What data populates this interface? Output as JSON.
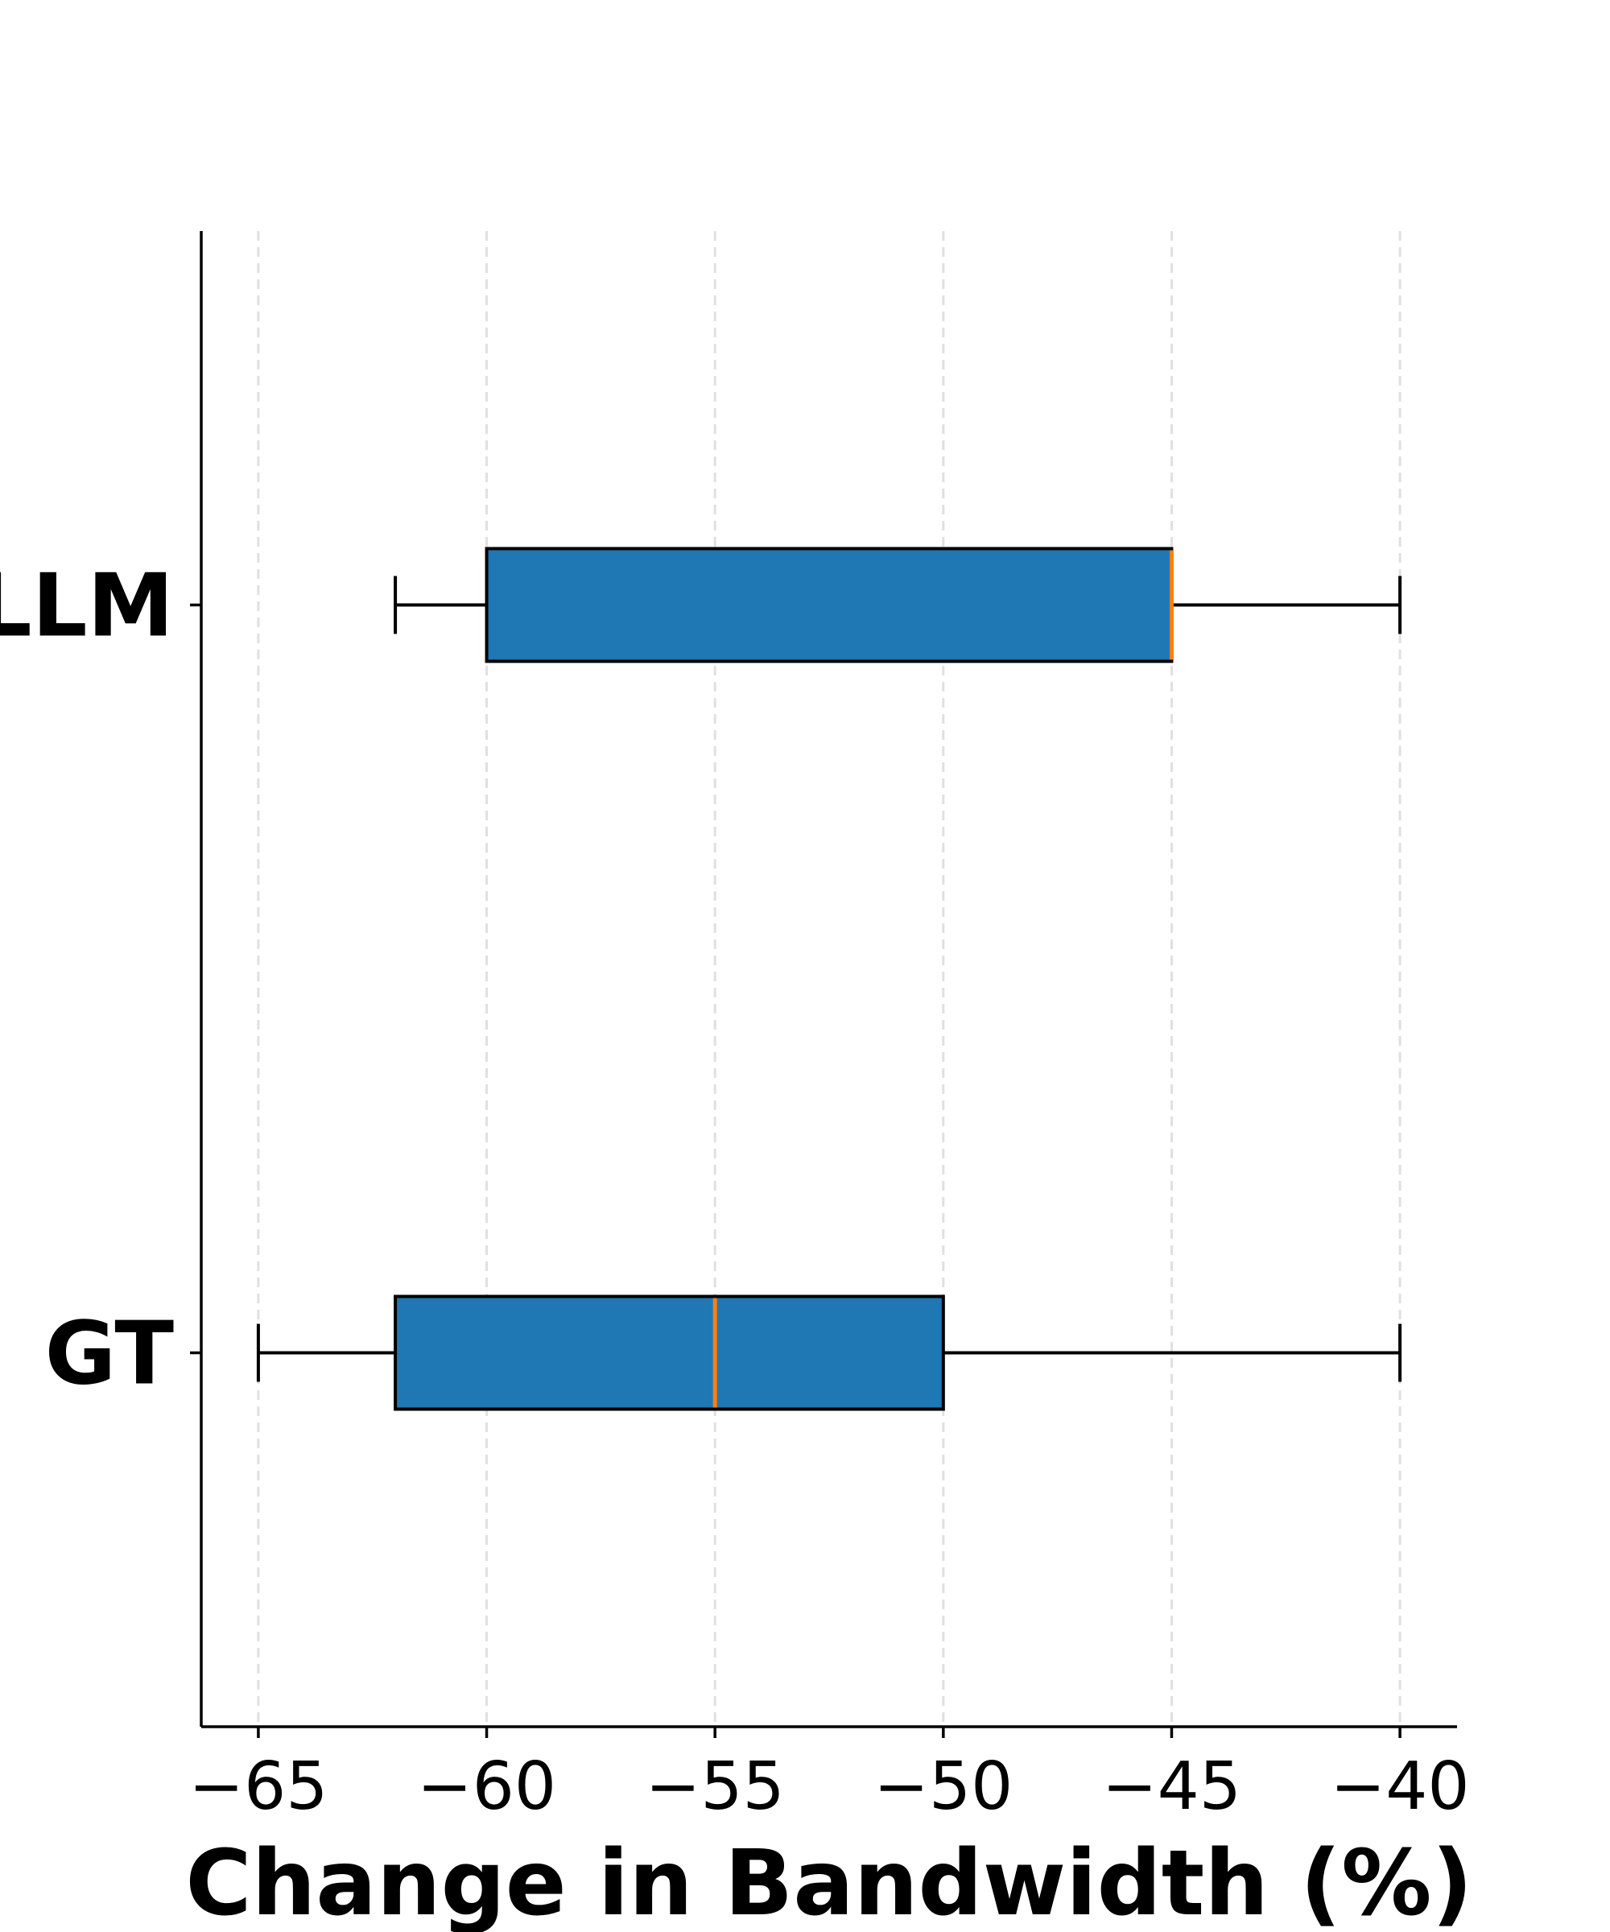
{
  "chart_data": {
    "type": "box",
    "orientation": "horizontal",
    "title": "",
    "xlabel": "Change in Bandwidth (%)",
    "ylabel": "",
    "xlim": [
      -66.25,
      -38.75
    ],
    "xticks": [
      -65,
      -60,
      -55,
      -50,
      -45,
      -40
    ],
    "xtick_labels": [
      "−65",
      "−60",
      "−55",
      "−50",
      "−45",
      "−40"
    ],
    "grid": {
      "axis": "x",
      "style": "dashed"
    },
    "categories": [
      "GT",
      "LLM"
    ],
    "boxes": [
      {
        "name": "GT",
        "whisker_low": -65,
        "q1": -62,
        "median": -55,
        "q3": -50,
        "whisker_high": -40
      },
      {
        "name": "LLM",
        "whisker_low": -62,
        "q1": -60,
        "median": -45,
        "q3": -45,
        "whisker_high": -40
      }
    ],
    "colors": {
      "box_fill": "#1f77b4",
      "median": "#ff7f0e",
      "lines": "#000000",
      "grid": "#e0e0e0"
    }
  }
}
